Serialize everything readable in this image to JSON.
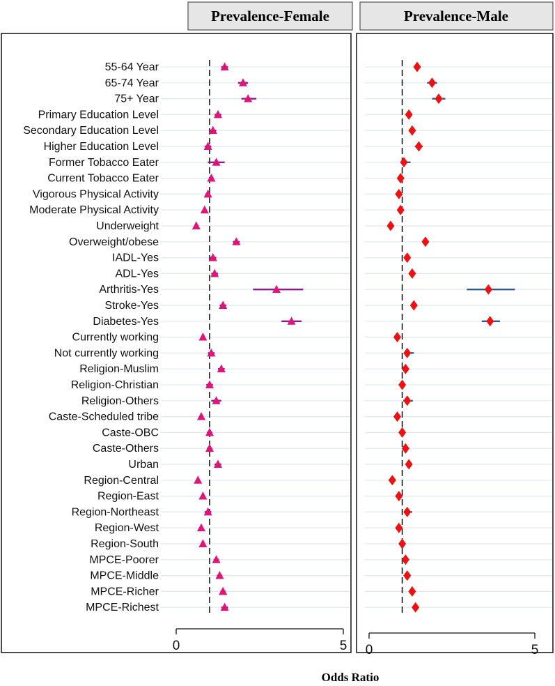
{
  "chart_data": {
    "type": "forest",
    "xlabel": "Odds Ratio",
    "xlim": [
      0,
      5
    ],
    "xticks": [
      0,
      5
    ],
    "reference_line": 1,
    "categories": [
      "55-64 Year",
      "65-74 Year",
      "75+ Year",
      "Primary Education Level",
      "Secondary Education Level",
      "Higher Education Level",
      "Former Tobacco Eater",
      "Current Tobacco Eater",
      "Vigorous Physical Activity",
      "Moderate Physical Activity",
      "Underweight",
      "Overweight/obese",
      "IADL-Yes",
      "ADL-Yes",
      "Arthritis-Yes",
      "Stroke-Yes",
      "Diabetes-Yes",
      "Currently working",
      "Not currently working",
      "Religion-Muslim",
      "Religion-Christian",
      "Religion-Others",
      "Caste-Scheduled tribe",
      "Caste-OBC",
      "Caste-Others",
      "Urban",
      "Region-Central",
      "Region-East",
      "Region-Northeast",
      "Region-West",
      "Region-South",
      "MPCE-Poorer",
      "MPCE-Middle",
      "MPCE-Richer",
      "MPCE-Richest"
    ],
    "series": [
      {
        "name": "Prevalence-Female",
        "marker": "triangle",
        "marker_color": "#e0157a",
        "ci_color": "#8b1a8b",
        "values": [
          1.45,
          2.0,
          2.15,
          1.25,
          1.1,
          0.95,
          1.2,
          1.05,
          0.95,
          0.85,
          0.6,
          1.8,
          1.1,
          1.15,
          3.0,
          1.4,
          3.45,
          0.8,
          1.05,
          1.35,
          1.0,
          1.2,
          0.75,
          1.0,
          1.0,
          1.25,
          0.65,
          0.8,
          0.95,
          0.75,
          0.8,
          1.2,
          1.3,
          1.4,
          1.45
        ],
        "ci_low": [
          1.35,
          1.85,
          1.95,
          1.15,
          1.0,
          0.85,
          0.95,
          0.98,
          0.88,
          0.8,
          0.55,
          1.7,
          1.0,
          1.05,
          2.3,
          1.3,
          3.15,
          0.75,
          0.95,
          1.25,
          0.9,
          1.05,
          0.7,
          0.92,
          0.92,
          1.15,
          0.6,
          0.74,
          0.85,
          0.7,
          0.74,
          1.12,
          1.22,
          1.32,
          1.35
        ],
        "ci_high": [
          1.55,
          2.15,
          2.4,
          1.35,
          1.2,
          1.05,
          1.45,
          1.12,
          1.02,
          0.9,
          0.65,
          1.9,
          1.2,
          1.25,
          3.8,
          1.5,
          3.75,
          0.85,
          1.15,
          1.45,
          1.1,
          1.35,
          0.8,
          1.08,
          1.08,
          1.35,
          0.7,
          0.86,
          1.05,
          0.8,
          0.86,
          1.28,
          1.38,
          1.48,
          1.55
        ]
      },
      {
        "name": "Prevalence-Male",
        "marker": "diamond",
        "marker_color": "#ee1111",
        "ci_color": "#2a5a90",
        "values": [
          1.45,
          1.9,
          2.1,
          1.2,
          1.3,
          1.5,
          1.05,
          0.95,
          0.9,
          0.95,
          0.65,
          1.7,
          1.15,
          1.3,
          3.6,
          1.35,
          3.65,
          0.85,
          1.15,
          1.1,
          1.0,
          1.15,
          0.85,
          1.0,
          1.1,
          1.2,
          0.7,
          0.9,
          1.15,
          0.9,
          1.0,
          1.1,
          1.15,
          1.3,
          1.4
        ],
        "ci_low": [
          1.35,
          1.75,
          1.9,
          1.12,
          1.22,
          1.38,
          0.95,
          0.88,
          0.84,
          0.88,
          0.6,
          1.62,
          1.06,
          1.2,
          2.95,
          1.25,
          3.4,
          0.8,
          1.05,
          1.02,
          0.93,
          1.03,
          0.8,
          0.93,
          1.03,
          1.13,
          0.65,
          0.84,
          1.05,
          0.84,
          0.93,
          1.03,
          1.08,
          1.22,
          1.32
        ],
        "ci_high": [
          1.55,
          2.05,
          2.3,
          1.28,
          1.38,
          1.62,
          1.25,
          1.02,
          0.96,
          1.02,
          0.7,
          1.78,
          1.24,
          1.4,
          4.4,
          1.45,
          3.95,
          0.9,
          1.35,
          1.18,
          1.07,
          1.32,
          0.9,
          1.07,
          1.17,
          1.27,
          0.75,
          0.96,
          1.3,
          0.96,
          1.07,
          1.17,
          1.22,
          1.38,
          1.48
        ]
      }
    ]
  }
}
